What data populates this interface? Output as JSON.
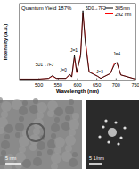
{
  "chart_data": {
    "type": "line",
    "x_label": "Wavelength (nm)",
    "y_label": "Intensity (a.u.)",
    "annotations": [
      "Quantum Yield 187%",
      "5D0→7F2",
      "J=1",
      "5D1→7FJ",
      "J=0",
      "J=3",
      "J=4"
    ],
    "x": [
      450,
      500,
      525,
      535,
      545,
      570,
      580,
      585,
      592,
      598,
      608,
      614,
      620,
      630,
      652,
      660,
      685,
      695,
      702,
      712,
      750
    ],
    "series": [
      {
        "name": "305nm",
        "color": "#000000",
        "values": [
          0.02,
          0.02,
          0.03,
          0.07,
          0.03,
          0.03,
          0.09,
          0.05,
          0.36,
          0.12,
          0.35,
          1.0,
          0.55,
          0.12,
          0.06,
          0.03,
          0.1,
          0.22,
          0.26,
          0.08,
          0.02
        ]
      },
      {
        "name": "292 nm",
        "color": "#ff0000",
        "values": [
          0.02,
          0.02,
          0.03,
          0.06,
          0.03,
          0.03,
          0.08,
          0.05,
          0.33,
          0.11,
          0.38,
          0.97,
          0.6,
          0.13,
          0.06,
          0.03,
          0.1,
          0.24,
          0.25,
          0.08,
          0.02
        ]
      }
    ],
    "xlim": [
      450,
      750
    ],
    "xticks": [
      500,
      550,
      600,
      650,
      700,
      750
    ],
    "ylim": [
      0,
      1.1
    ],
    "tick_labels": "x",
    "legend": "upper right"
  },
  "images": [
    {
      "scale_bar": "5 nm"
    },
    {
      "scale_bar": "5 1/nm"
    }
  ]
}
